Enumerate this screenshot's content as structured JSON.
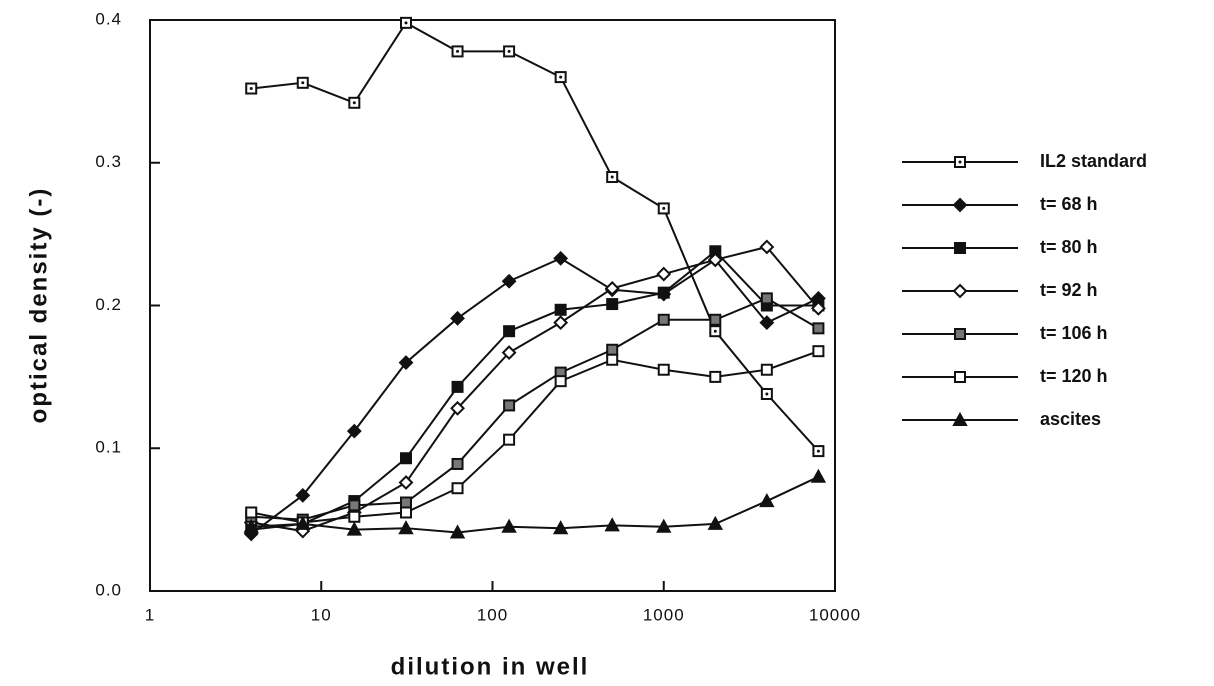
{
  "chart_data": {
    "type": "line",
    "xlabel": "dilution in well",
    "ylabel": "optical density (-)",
    "xscale": "log",
    "xlim": [
      1,
      10000
    ],
    "xticks": [
      1,
      10,
      100,
      1000,
      10000
    ],
    "ylim": [
      0,
      0.4
    ],
    "yticks": [
      {
        "value": 0,
        "label": "0.0"
      },
      0.1,
      0.2,
      0.3,
      0.4
    ],
    "legend": "right",
    "x": [
      3.9,
      7.8,
      15.6,
      31.25,
      62.5,
      125,
      250,
      500,
      1000,
      2000,
      4000,
      8000
    ],
    "series": [
      {
        "name": "IL2 standard",
        "color": "#111111",
        "marker": "square-dot",
        "values": [
          0.352,
          0.356,
          0.342,
          0.398,
          0.378,
          0.378,
          0.36,
          0.29,
          0.268,
          0.182,
          0.138,
          0.098
        ]
      },
      {
        "name": "t= 68 h",
        "color": "#111111",
        "marker": "diamond-filled",
        "values": [
          0.04,
          0.067,
          0.112,
          0.16,
          0.191,
          0.217,
          0.233,
          0.211,
          0.208,
          0.232,
          0.188,
          0.205
        ]
      },
      {
        "name": "t= 80 h",
        "color": "#111111",
        "marker": "square-filled",
        "values": [
          0.043,
          0.047,
          0.063,
          0.093,
          0.143,
          0.182,
          0.197,
          0.201,
          0.209,
          0.238,
          0.2,
          0.2
        ]
      },
      {
        "name": "t= 92 h",
        "color": "#111111",
        "marker": "diamond-open",
        "values": [
          0.048,
          0.042,
          0.055,
          0.076,
          0.128,
          0.167,
          0.188,
          0.212,
          0.222,
          0.232,
          0.241,
          0.198
        ]
      },
      {
        "name": "t= 106 h",
        "color": "#111111",
        "marker": "square-hatched",
        "values": [
          0.052,
          0.05,
          0.06,
          0.062,
          0.089,
          0.13,
          0.153,
          0.169,
          0.19,
          0.19,
          0.205,
          0.184
        ]
      },
      {
        "name": "t= 120 h",
        "color": "#111111",
        "marker": "square-open",
        "values": [
          0.055,
          0.048,
          0.052,
          0.055,
          0.072,
          0.106,
          0.147,
          0.162,
          0.155,
          0.15,
          0.155,
          0.168
        ]
      },
      {
        "name": "ascites",
        "color": "#111111",
        "marker": "triangle-filled",
        "values": [
          0.045,
          0.047,
          0.043,
          0.044,
          0.041,
          0.045,
          0.044,
          0.046,
          0.045,
          0.047,
          0.063,
          0.08
        ]
      }
    ]
  }
}
